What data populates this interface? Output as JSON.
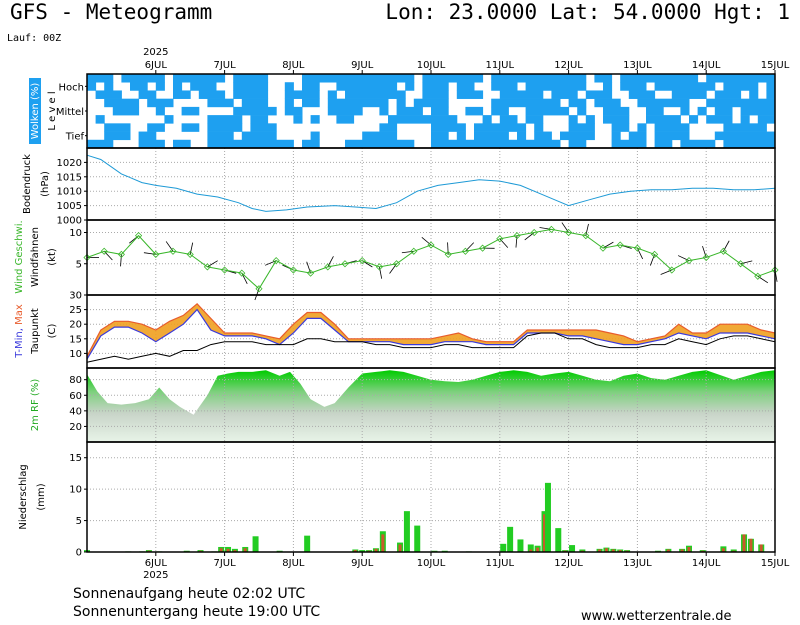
{
  "header": {
    "title": "GFS - Meteogramm",
    "coords": "Lon: 23.0000 Lat: 54.0000 Hgt: 1",
    "run": "Lauf: 00Z"
  },
  "footer": {
    "sunrise": "Sonnenaufgang heute 02:02 UTC",
    "sunset": "Sonnenuntergang heute 19:00 UTC",
    "website": "www.wetterzentrale.de"
  },
  "chart_data": {
    "type": "meteogram",
    "year": "2025",
    "days": [
      "6JUL",
      "7JUL",
      "8JUL",
      "9JUL",
      "10JUL",
      "11JUL",
      "12JUL",
      "13JUL",
      "14JUL",
      "15JUL"
    ],
    "panels": [
      {
        "id": "clouds",
        "type": "heatmap",
        "ylabel": "Wolken (%)",
        "ylabel2": "L e v e l",
        "levels": [
          "Hoch",
          "Mittel",
          "Tief"
        ],
        "colors": {
          "cloud": "#1ea0f0",
          "label_bg": "#1ea0f0"
        },
        "time_start_day": 5.0,
        "step_hours": 3,
        "rows": [
          {
            "level": "Hoch",
            "bands": [
              "11101111101111110111100001111111111111011111110111111111110110111111111011111111",
              "10100110101011100111100101100111111101011101100111011111110010111011111110111101",
              "01110011001101110111100111101011111110011101110011111011101110011100111101110101"
            ]
          },
          {
            "level": "Mittel",
            "bands": [
              "00111101110000111011100101101111111010111100000111111110110111001111110011111111",
              "00011100100110000111110110001111001011101100110110011111010011100110010101101111",
              "01000000010000111101100010100110000111111110001011011000101011100111101011101011"
            ]
          },
          {
            "level": "Tief",
            "bands": [
              "00111001100110111101110000000000001100001111011111101000111001101011110000111110",
              "00111011000000111011110000100000111100001101011110101101111001011011110001111111",
              "11100011101100111111111101100011111111001111111111111110110001111011011110111111"
            ]
          }
        ]
      },
      {
        "id": "pressure",
        "type": "line",
        "ylabel": "Bodendruck",
        "unit": "(hPa)",
        "ylim": [
          1000,
          1025
        ],
        "yticks": [
          1000,
          1005,
          1010,
          1015,
          1020
        ],
        "line_color": "#1e9ad6",
        "x": [
          5.0,
          5.2,
          5.5,
          5.8,
          6.0,
          6.3,
          6.6,
          6.9,
          7.2,
          7.4,
          7.6,
          7.9,
          8.2,
          8.6,
          8.9,
          9.2,
          9.5,
          9.8,
          10.1,
          10.4,
          10.7,
          11.0,
          11.3,
          11.6,
          11.8,
          12.0,
          12.3,
          12.6,
          12.9,
          13.2,
          13.5,
          13.8,
          14.1,
          14.4,
          14.7,
          15.0
        ],
        "y": [
          1022.5,
          1021,
          1016,
          1013,
          1012,
          1011,
          1009,
          1008,
          1006,
          1004,
          1003,
          1003.5,
          1004.5,
          1005,
          1004.5,
          1004,
          1006,
          1010,
          1012,
          1013,
          1014,
          1013.5,
          1012,
          1009,
          1007,
          1005,
          1007,
          1009,
          1010,
          1010.5,
          1010.5,
          1011,
          1011,
          1010.5,
          1010.5,
          1011
        ]
      },
      {
        "id": "wind",
        "type": "line",
        "ylabel": "Wind Geschwi.",
        "ylabel2": "Windfahnen",
        "unit": "(kt)",
        "ylim": [
          0,
          12
        ],
        "yticks": [
          5,
          10
        ],
        "line_color": "#39b62a",
        "x": [
          5.0,
          5.25,
          5.5,
          5.75,
          6.0,
          6.25,
          6.5,
          6.75,
          7.0,
          7.25,
          7.5,
          7.75,
          8.0,
          8.25,
          8.5,
          8.75,
          9.0,
          9.25,
          9.5,
          9.75,
          10.0,
          10.25,
          10.5,
          10.75,
          11.0,
          11.25,
          11.5,
          11.75,
          12.0,
          12.25,
          12.5,
          12.75,
          13.0,
          13.25,
          13.5,
          13.75,
          14.0,
          14.25,
          14.5,
          14.75,
          15.0
        ],
        "y": [
          6,
          7,
          6.5,
          9.5,
          6.5,
          7,
          6.5,
          4.5,
          4,
          3.5,
          1,
          5.5,
          4,
          3.5,
          4.5,
          5,
          5.5,
          4.5,
          5,
          7,
          8,
          6.5,
          7,
          7.5,
          9,
          9.5,
          10,
          10.5,
          10,
          9.5,
          7.5,
          8,
          7.5,
          6.5,
          4,
          5.5,
          6,
          7,
          5,
          3,
          4
        ]
      },
      {
        "id": "temperature",
        "type": "area",
        "ylabel": "T-Min, Max",
        "ylabel2": "Taupunkt",
        "unit": "(C)",
        "ylim": [
          5,
          30
        ],
        "yticks": [
          10,
          15,
          20,
          25,
          30
        ],
        "colors": {
          "tmax": "#e85c2c",
          "tmin": "#3a3adc",
          "dewpoint": "#000000",
          "fill": "#f0a020"
        },
        "x": [
          5.0,
          5.2,
          5.4,
          5.6,
          5.8,
          6.0,
          6.2,
          6.4,
          6.6,
          6.8,
          7.0,
          7.2,
          7.4,
          7.6,
          7.8,
          8.0,
          8.2,
          8.4,
          8.6,
          8.8,
          9.0,
          9.2,
          9.4,
          9.6,
          9.8,
          10.0,
          10.2,
          10.4,
          10.6,
          10.8,
          11.0,
          11.2,
          11.4,
          11.6,
          11.8,
          12.0,
          12.2,
          12.4,
          12.6,
          12.8,
          13.0,
          13.2,
          13.4,
          13.6,
          13.8,
          14.0,
          14.2,
          14.4,
          14.6,
          14.8,
          15.0
        ],
        "tmax": [
          9,
          18,
          21,
          21,
          20,
          18,
          21,
          23,
          27,
          22,
          17,
          17,
          17,
          16,
          15,
          20,
          24,
          24,
          20,
          15,
          15,
          15,
          15,
          15,
          15,
          15,
          16,
          17,
          15,
          14,
          14,
          14,
          18,
          18,
          18,
          18,
          18,
          18,
          17,
          16,
          14,
          15,
          16,
          20,
          17,
          17,
          20,
          20,
          20,
          18,
          17
        ],
        "tmin": [
          8,
          16,
          19,
          19,
          17,
          14,
          17,
          20,
          25,
          18,
          16,
          16,
          16,
          15,
          13,
          17,
          22,
          22,
          18,
          14,
          14,
          14,
          14,
          13,
          13,
          13,
          14,
          14,
          14,
          13,
          13,
          13,
          17,
          17,
          17,
          16,
          16,
          15,
          14,
          13,
          13,
          14,
          15,
          17,
          16,
          15,
          17,
          17,
          17,
          16,
          15
        ],
        "dewpoint": [
          7,
          8,
          9,
          8,
          9,
          10,
          9,
          11,
          11,
          13,
          14,
          14,
          14,
          13,
          13,
          13,
          15,
          15,
          14,
          14,
          14,
          13,
          13,
          12,
          12,
          12,
          13,
          13,
          12,
          12,
          12,
          12,
          16,
          17,
          17,
          15,
          15,
          13,
          12,
          12,
          12,
          13,
          13,
          15,
          14,
          13,
          15,
          16,
          16,
          15,
          14
        ]
      },
      {
        "id": "humidity",
        "type": "area",
        "ylabel": "2m RF (%)",
        "ylim": [
          0,
          95
        ],
        "yticks": [
          20,
          40,
          60,
          80
        ],
        "colors": {
          "top": "#00cc00",
          "bottom": "#e8f4e8"
        },
        "x": [
          5.0,
          5.15,
          5.3,
          5.5,
          5.7,
          5.9,
          6.05,
          6.2,
          6.35,
          6.55,
          6.75,
          6.9,
          7.05,
          7.2,
          7.4,
          7.6,
          7.8,
          7.95,
          8.1,
          8.25,
          8.45,
          8.6,
          8.8,
          9.0,
          9.2,
          9.4,
          9.6,
          9.8,
          10.0,
          10.2,
          10.4,
          10.6,
          10.8,
          11.0,
          11.2,
          11.4,
          11.6,
          11.8,
          12.0,
          12.2,
          12.4,
          12.6,
          12.8,
          13.0,
          13.2,
          13.4,
          13.6,
          13.8,
          14.0,
          14.2,
          14.4,
          14.6,
          14.8,
          15.0
        ],
        "y": [
          87,
          65,
          50,
          48,
          50,
          55,
          70,
          55,
          45,
          35,
          60,
          85,
          88,
          90,
          90,
          92,
          85,
          90,
          75,
          55,
          45,
          50,
          70,
          88,
          90,
          92,
          90,
          85,
          80,
          78,
          77,
          80,
          85,
          90,
          92,
          90,
          85,
          88,
          90,
          85,
          80,
          78,
          85,
          88,
          82,
          80,
          85,
          90,
          92,
          86,
          80,
          85,
          90,
          92
        ]
      },
      {
        "id": "precip",
        "type": "bar",
        "ylabel": "Niederschlag",
        "unit": "(mm)",
        "ylim": [
          0,
          17.5
        ],
        "yticks": [
          0,
          5,
          10,
          15
        ],
        "colors": {
          "total": "#22cc22",
          "convective": "#c85a2c"
        },
        "x": [
          5.0,
          5.6,
          5.8,
          5.9,
          6.05,
          6.45,
          6.65,
          6.85,
          6.95,
          7.05,
          7.15,
          7.3,
          7.45,
          7.8,
          8.2,
          8.9,
          9.0,
          9.1,
          9.2,
          9.3,
          9.55,
          9.65,
          9.8,
          10.05,
          10.2,
          10.55,
          11.05,
          11.15,
          11.3,
          11.45,
          11.55,
          11.65,
          11.7,
          11.85,
          11.95,
          12.05,
          12.2,
          12.45,
          12.55,
          12.65,
          12.75,
          12.85,
          13.3,
          13.45,
          13.65,
          13.75,
          13.95,
          14.25,
          14.4,
          14.55,
          14.65,
          14.8
        ],
        "total": [
          0.3,
          0.1,
          0.1,
          0.3,
          0.1,
          0.2,
          0.3,
          0.1,
          0.8,
          0.8,
          0.5,
          0.8,
          2.5,
          0.2,
          2.6,
          0.4,
          0.3,
          0.3,
          0.6,
          3.3,
          1.5,
          6.5,
          4.2,
          0.2,
          0.2,
          0.1,
          1.3,
          4.0,
          2.0,
          1.2,
          1.0,
          6.5,
          11.0,
          3.8,
          0.3,
          1.1,
          0.4,
          0.5,
          0.7,
          0.5,
          0.4,
          0.3,
          0.2,
          0.5,
          0.5,
          1.0,
          0.3,
          0.9,
          0.4,
          2.8,
          2.1,
          1.2
        ],
        "convective": [
          0,
          0,
          0,
          0.2,
          0,
          0.1,
          0.2,
          0.05,
          0.6,
          0.5,
          0.3,
          0.6,
          0,
          0.1,
          0,
          0.3,
          0,
          0.2,
          0.5,
          2.8,
          1.2,
          0,
          0,
          0.1,
          0,
          0,
          0,
          0,
          0,
          0.4,
          0.7,
          6.0,
          0,
          0,
          0.2,
          0,
          0.2,
          0.4,
          0.6,
          0.4,
          0.3,
          0.2,
          0.1,
          0.4,
          0.4,
          0.8,
          0.2,
          0.6,
          0.2,
          2.8,
          2.1,
          1.2
        ]
      }
    ]
  }
}
